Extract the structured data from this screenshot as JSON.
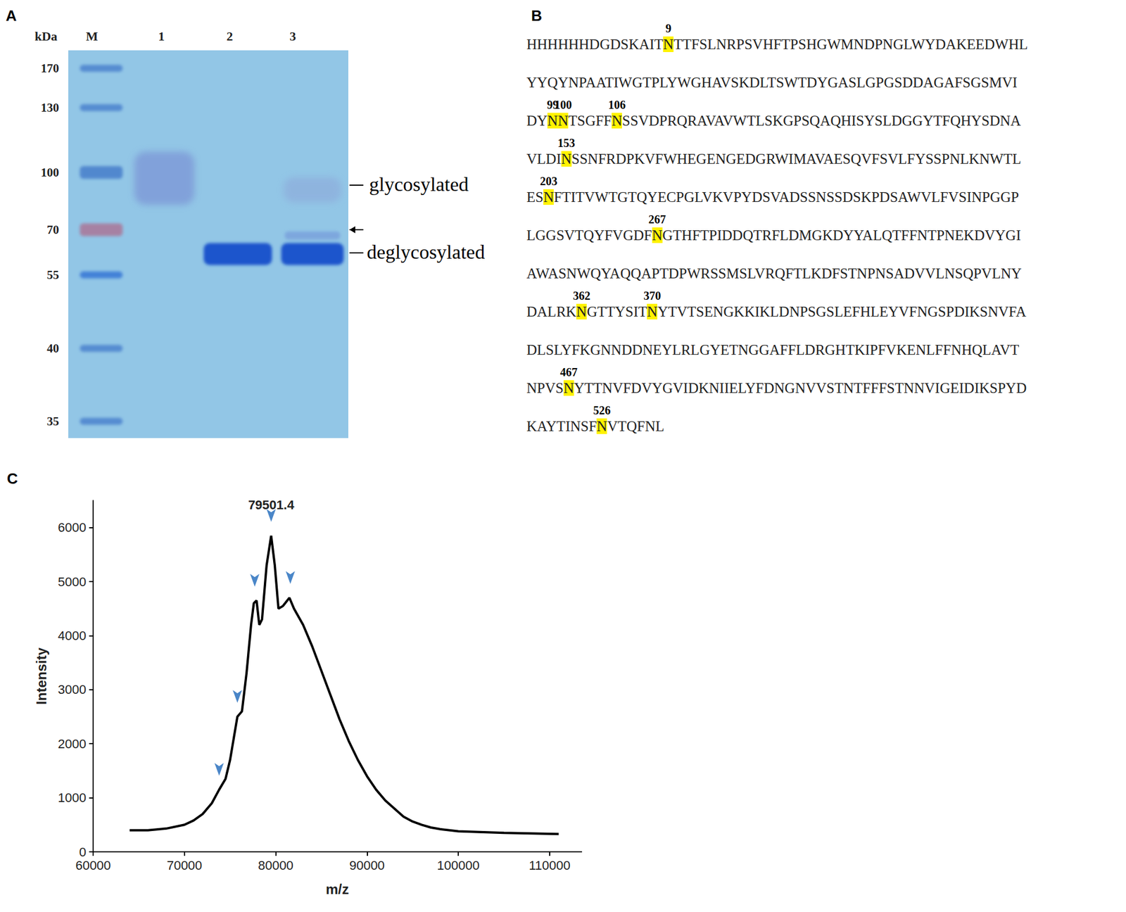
{
  "panel_a": {
    "label": "A",
    "unit": "kDa",
    "lanes": [
      "M",
      "1",
      "2",
      "3"
    ],
    "ladder": [
      170,
      130,
      100,
      70,
      55,
      40,
      35
    ],
    "band_labels": [
      "glycosylated",
      "deglycosylated"
    ]
  },
  "panel_b": {
    "label": "B",
    "lines": [
      [
        {
          "text": "HHHHHHDGDSKAIT"
        },
        {
          "text": "N",
          "site": 9
        },
        {
          "text": "TTFSLNRPSVHFTPSHGWMNDPNGLWYDAKEEDWHL"
        }
      ],
      [
        {
          "text": "YYQYNPAATIWGTPLYWGHAVSKDLTSWTDYGASLGPGSDDAGAFSGSMVI"
        }
      ],
      [
        {
          "text": "DY"
        },
        {
          "text": "N",
          "site": 99
        },
        {
          "text": "N",
          "site": 100
        },
        {
          "text": "TSGFF"
        },
        {
          "text": "N",
          "site": 106
        },
        {
          "text": "SSVDPRQRAVAVWTLSKGPSQAQHISYSLDGGYTFQHYSDNA"
        }
      ],
      [
        {
          "text": "VLDI"
        },
        {
          "text": "N",
          "site": 153
        },
        {
          "text": "SSNFRDPKVFWHEGENGEDGRWIMAVAESQVFSVLFYSSPNLKNWTL"
        }
      ],
      [
        {
          "text": "ES"
        },
        {
          "text": "N",
          "site": 203
        },
        {
          "text": "FTITVWTGTQYECPGLVKVPYDSVADSSNSSDSKPDSAWVLFVSINPGGP"
        }
      ],
      [
        {
          "text": "LGGSVTQYFVGDF"
        },
        {
          "text": "N",
          "site": 267
        },
        {
          "text": "GTHFTPIDDQTRFLDMGKDYYALQTFFNTPNEKDVYGI"
        }
      ],
      [
        {
          "text": "AWASNWQYAQQAPTDPWRSSMSLVRQFTLKDFSTNPNSADVVLNSQPVLNY"
        }
      ],
      [
        {
          "text": "DALRK"
        },
        {
          "text": "N",
          "site": 362
        },
        {
          "text": "GTTYSIT"
        },
        {
          "text": "N",
          "site": 370
        },
        {
          "text": "YTVTSENGKKIKLDNPSGSLEFHLEYVFNGSPDIKSNVFA"
        }
      ],
      [
        {
          "text": "DLSLYFKGNNDDNEYLRLGYETNGGAFFLDRGHTKIPFVKENLFFNHQLAVT"
        }
      ],
      [
        {
          "text": "NPVS"
        },
        {
          "text": "N",
          "site": 467
        },
        {
          "text": "YTTNVFDVYGVIDKNIIELYFDNGNVVSTNTFFFSTNNVIGEIDIKSPYD"
        }
      ],
      [
        {
          "text": "KAYTINSF"
        },
        {
          "text": "N",
          "site": 526
        },
        {
          "text": "VTQFNL"
        }
      ]
    ]
  },
  "panel_c": {
    "label": "C"
  },
  "chart_data": {
    "type": "line",
    "x_label": "m/z",
    "y_label": "Intensity",
    "color": "#000000",
    "x": [
      64000,
      66000,
      68000,
      70000,
      71000,
      72000,
      73000,
      73800,
      74500,
      75000,
      75500,
      75800,
      76300,
      76800,
      77300,
      77600,
      77900,
      78200,
      78500,
      79000,
      79500,
      79900,
      80300,
      80800,
      81500,
      82000,
      83000,
      84000,
      85000,
      86000,
      87000,
      88000,
      89000,
      90000,
      91000,
      92000,
      93000,
      94000,
      95000,
      96000,
      97000,
      98000,
      100000,
      105000,
      111000
    ],
    "values": [
      400,
      400,
      430,
      500,
      580,
      700,
      900,
      1150,
      1350,
      1700,
      2200,
      2500,
      2600,
      3300,
      4200,
      4600,
      4650,
      4200,
      4300,
      5300,
      5850,
      5300,
      4500,
      4550,
      4700,
      4500,
      4200,
      3800,
      3350,
      2900,
      2450,
      2050,
      1700,
      1400,
      1150,
      950,
      800,
      650,
      560,
      500,
      450,
      420,
      380,
      350,
      330
    ],
    "arrows": [
      {
        "x": 73800,
        "y": 1150
      },
      {
        "x": 75800,
        "y": 2500
      },
      {
        "x": 77700,
        "y": 4650
      },
      {
        "x": 79500,
        "y": 5850
      },
      {
        "x": 81600,
        "y": 4700
      }
    ],
    "annotations": [
      {
        "x": 79501.4,
        "y": 5850,
        "text": "79501.4"
      }
    ],
    "xlim": [
      60000,
      113500
    ],
    "xticks": [
      60000,
      70000,
      80000,
      90000,
      100000,
      110000
    ],
    "ylim": [
      0,
      6500
    ],
    "yticks": [
      0,
      1000,
      2000,
      3000,
      4000,
      5000,
      6000
    ],
    "grid": false
  }
}
